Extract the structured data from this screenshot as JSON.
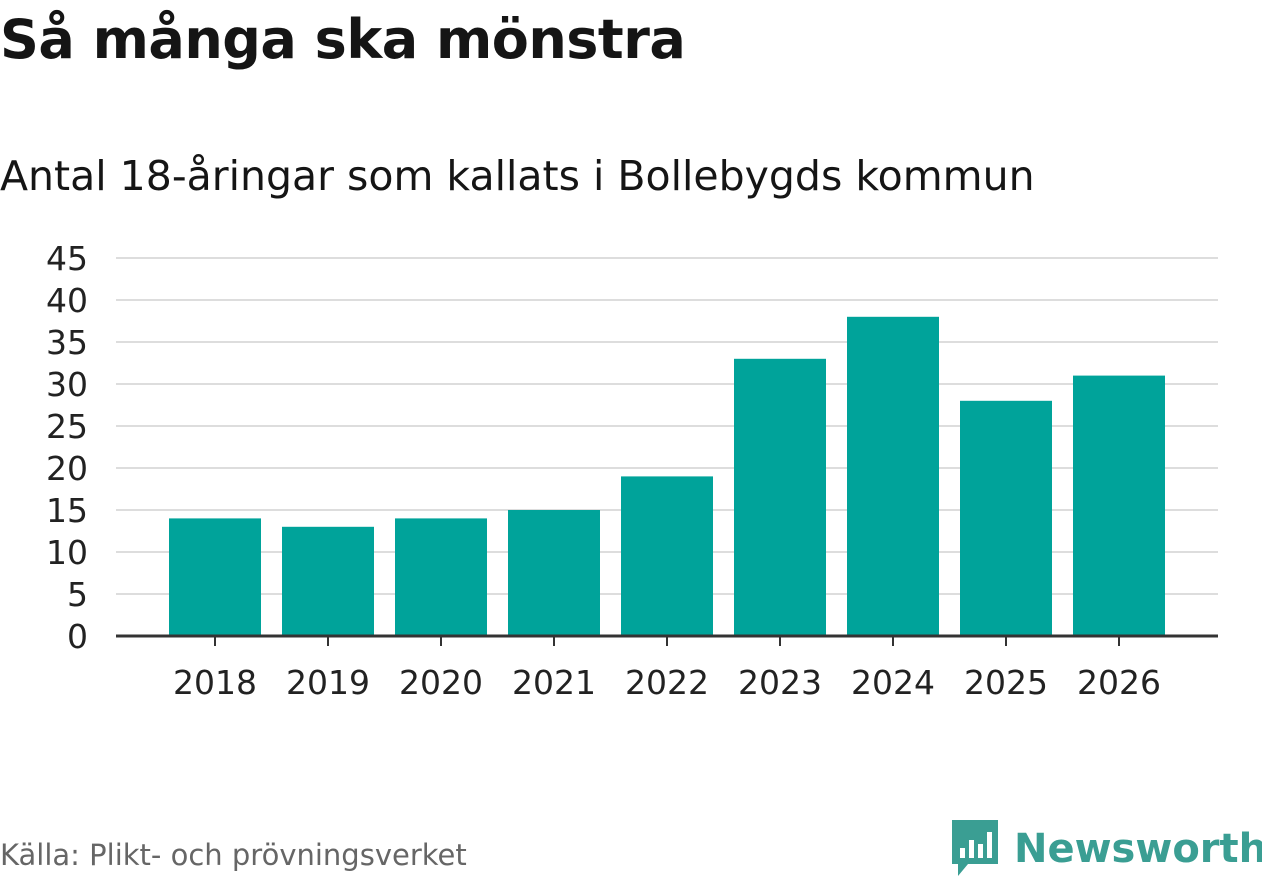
{
  "title": "Så många ska mönstra",
  "subtitle": "Antal 18-åringar som kallats i Bollebygds kommun",
  "source": "Källa: Plikt- och prövningsverket",
  "brand": "Newsworthy",
  "colors": {
    "bar": "#00a39a",
    "grid": "#dddddd",
    "axis": "#333333",
    "brand": "#3a9e93"
  },
  "chart_data": {
    "type": "bar",
    "title": "Så många ska mönstra",
    "subtitle": "Antal 18-åringar som kallats i Bollebygds kommun",
    "xlabel": "",
    "ylabel": "",
    "categories": [
      "2018",
      "2019",
      "2020",
      "2021",
      "2022",
      "2023",
      "2024",
      "2025",
      "2026"
    ],
    "values": [
      14,
      13,
      14,
      15,
      19,
      33,
      38,
      28,
      31
    ],
    "ylim": [
      0,
      45
    ],
    "yticks": [
      0,
      5,
      10,
      15,
      20,
      25,
      30,
      35,
      40,
      45
    ],
    "grid": true
  }
}
